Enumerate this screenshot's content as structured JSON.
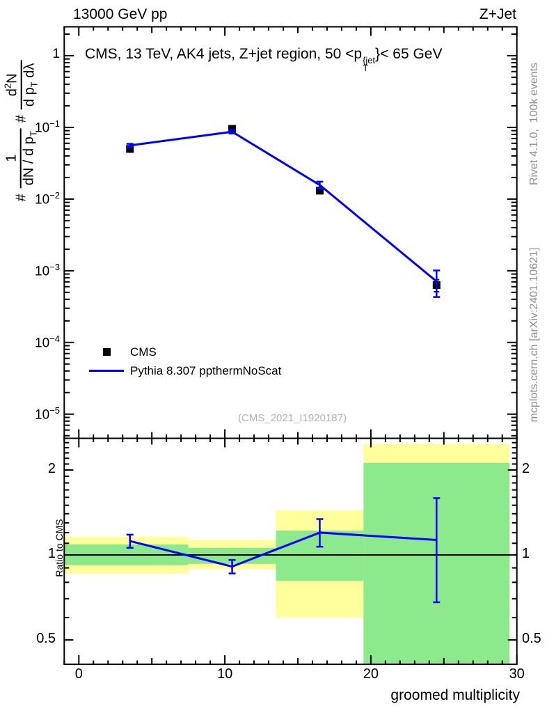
{
  "header": {
    "left": "13000 GeV pp",
    "right": "Z+Jet"
  },
  "panel_title": {
    "pre": "CMS, 13 TeV, AK4 jets, Z+jet region, 50 <p",
    "sup": "{jet",
    "sub": "T",
    "post": "}< 65 GeV"
  },
  "side_notes": {
    "top": "Rivet 4.1.0,  100k events",
    "bottom": "mcplots.cern.ch [arXiv:2401.10621]"
  },
  "watermark": "(CMS_2021_I1920187)",
  "y_axis_title": {
    "hash1": "#",
    "f1_num": "1",
    "f1_den_main": "dN / d p",
    "f1_den_sub": "T",
    "hash2": "#",
    "f2_num_main": "d",
    "f2_num_sup": "2",
    "f2_num_tail": "N",
    "f2_den_main": "d p",
    "f2_den_sub": "T",
    "f2_den_tail": " dλ"
  },
  "ratio_axis_title": "Ratio to CMS",
  "legend": {
    "items": [
      {
        "label": "CMS",
        "marker": "square",
        "color": "#000000"
      },
      {
        "label": "Pythia 8.307 ppthermNoScat",
        "marker": "line",
        "color": "#0000ff"
      }
    ]
  },
  "colors": {
    "model_blue": "#0000ff",
    "band_yellow": "#ffff9c",
    "band_green": "#8ce98c",
    "side_text_gray": "#8e8e8e",
    "watermark_gray": "#b2b2b2"
  },
  "chart_data": {
    "type": "line",
    "xlabel": "groomed multiplicity",
    "xlim": [
      -1,
      30
    ],
    "xticks_labeled": [
      0,
      10,
      20,
      30
    ],
    "xticks_medium": [
      5,
      15,
      25
    ],
    "x_minor_step": 1,
    "top_panel": {
      "yscale": "log",
      "ylim": [
        4.6e-06,
        2.53
      ],
      "ytick_exponents_labeled": [
        0,
        -1,
        -2,
        -3,
        -4,
        -5
      ],
      "series": [
        {
          "name": "CMS",
          "type": "scatter",
          "marker": "square",
          "color": "#000000",
          "x": [
            3.5,
            10.5,
            16.5,
            24.5
          ],
          "y": [
            0.05,
            0.0955,
            0.0131,
            0.00063
          ],
          "yerr_lo": [
            0.004,
            0.005,
            0.0012,
            0.00012
          ],
          "yerr_hi": [
            0.004,
            0.005,
            0.0012,
            0.00012
          ]
        },
        {
          "name": "Pythia 8.307 ppthermNoScat",
          "type": "line",
          "color": "#0000ff",
          "x": [
            3.5,
            10.5,
            16.5,
            24.5
          ],
          "y": [
            0.056,
            0.0869,
            0.0157,
            0.00071
          ],
          "yerr_lo": [
            0.003,
            0.0048,
            0.0017,
            0.00028
          ],
          "yerr_hi": [
            0.003,
            0.0048,
            0.0018,
            0.0003
          ]
        }
      ]
    },
    "ratio_panel": {
      "yscale": "log",
      "ylim": [
        0.41,
        2.59
      ],
      "yticks_labeled": [
        0.5,
        1,
        2
      ],
      "reference_line_y": 1,
      "uncertainty_bands": [
        {
          "x0": -1.0,
          "x1": 7.5,
          "yellow": [
            0.86,
            1.16
          ],
          "green": [
            0.92,
            1.09
          ]
        },
        {
          "x0": 7.5,
          "x1": 13.5,
          "yellow": [
            0.89,
            1.13
          ],
          "green": [
            0.93,
            1.06
          ]
        },
        {
          "x0": 13.5,
          "x1": 19.5,
          "yellow": [
            0.6,
            1.44
          ],
          "green": [
            0.81,
            1.22
          ]
        },
        {
          "x0": 19.5,
          "x1": 29.5,
          "yellow": [
            0.3,
            2.47
          ],
          "green": [
            0.3,
            2.12
          ]
        }
      ],
      "series": [
        {
          "name": "Pythia 8.307 ppthermNoScat",
          "color": "#0000ff",
          "x": [
            3.5,
            10.5,
            16.5,
            24.5
          ],
          "y": [
            1.12,
            0.91,
            1.2,
            1.13
          ],
          "yerr_lo": [
            0.06,
            0.05,
            0.13,
            0.45
          ],
          "yerr_hi": [
            0.06,
            0.05,
            0.14,
            0.46
          ]
        }
      ]
    }
  }
}
